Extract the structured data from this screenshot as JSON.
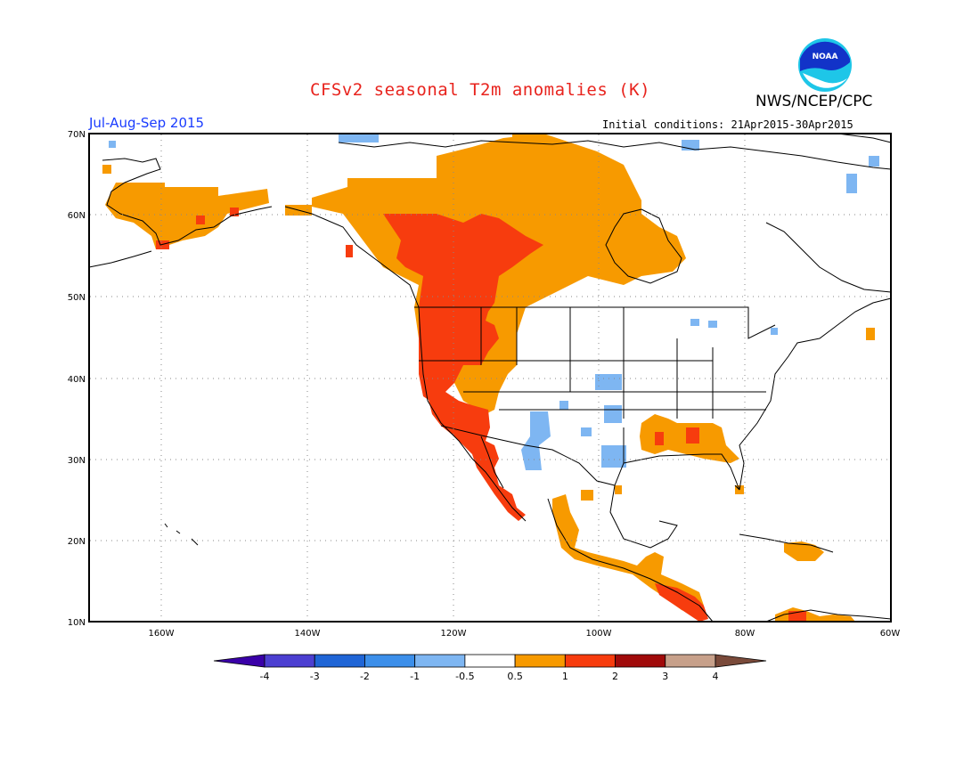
{
  "header": {
    "title": "CFSv2 seasonal T2m anomalies (K)",
    "agency": "NWS/NCEP/CPC",
    "logo_text": "NOAA",
    "season": "Jul-Aug-Sep 2015",
    "initial_conditions": "Initial conditions: 21Apr2015-30Apr2015"
  },
  "axes": {
    "lat_labels": [
      "70N",
      "60N",
      "50N",
      "40N",
      "30N",
      "20N",
      "10N"
    ],
    "lon_labels": [
      "160W",
      "140W",
      "120W",
      "100W",
      "80W",
      "60W"
    ]
  },
  "colorbar": {
    "labels": [
      "-4",
      "-3",
      "-2",
      "-1",
      "-0.5",
      "0.5",
      "1",
      "2",
      "3",
      "4"
    ],
    "colors": [
      "#3a00a8",
      "#4c3fd1",
      "#1f65d6",
      "#3c8fea",
      "#7eb6f2",
      "#ffffff",
      "#f79a00",
      "#f73c0e",
      "#a00a0a",
      "#c7a08a",
      "#7a4a3a"
    ]
  },
  "palette": {
    "warm_light": "#f79a00",
    "warm_mid": "#f73c0e",
    "cool_light": "#7eb6f2",
    "title_red": "#e8231d",
    "season_blue": "#1a3cff"
  }
}
